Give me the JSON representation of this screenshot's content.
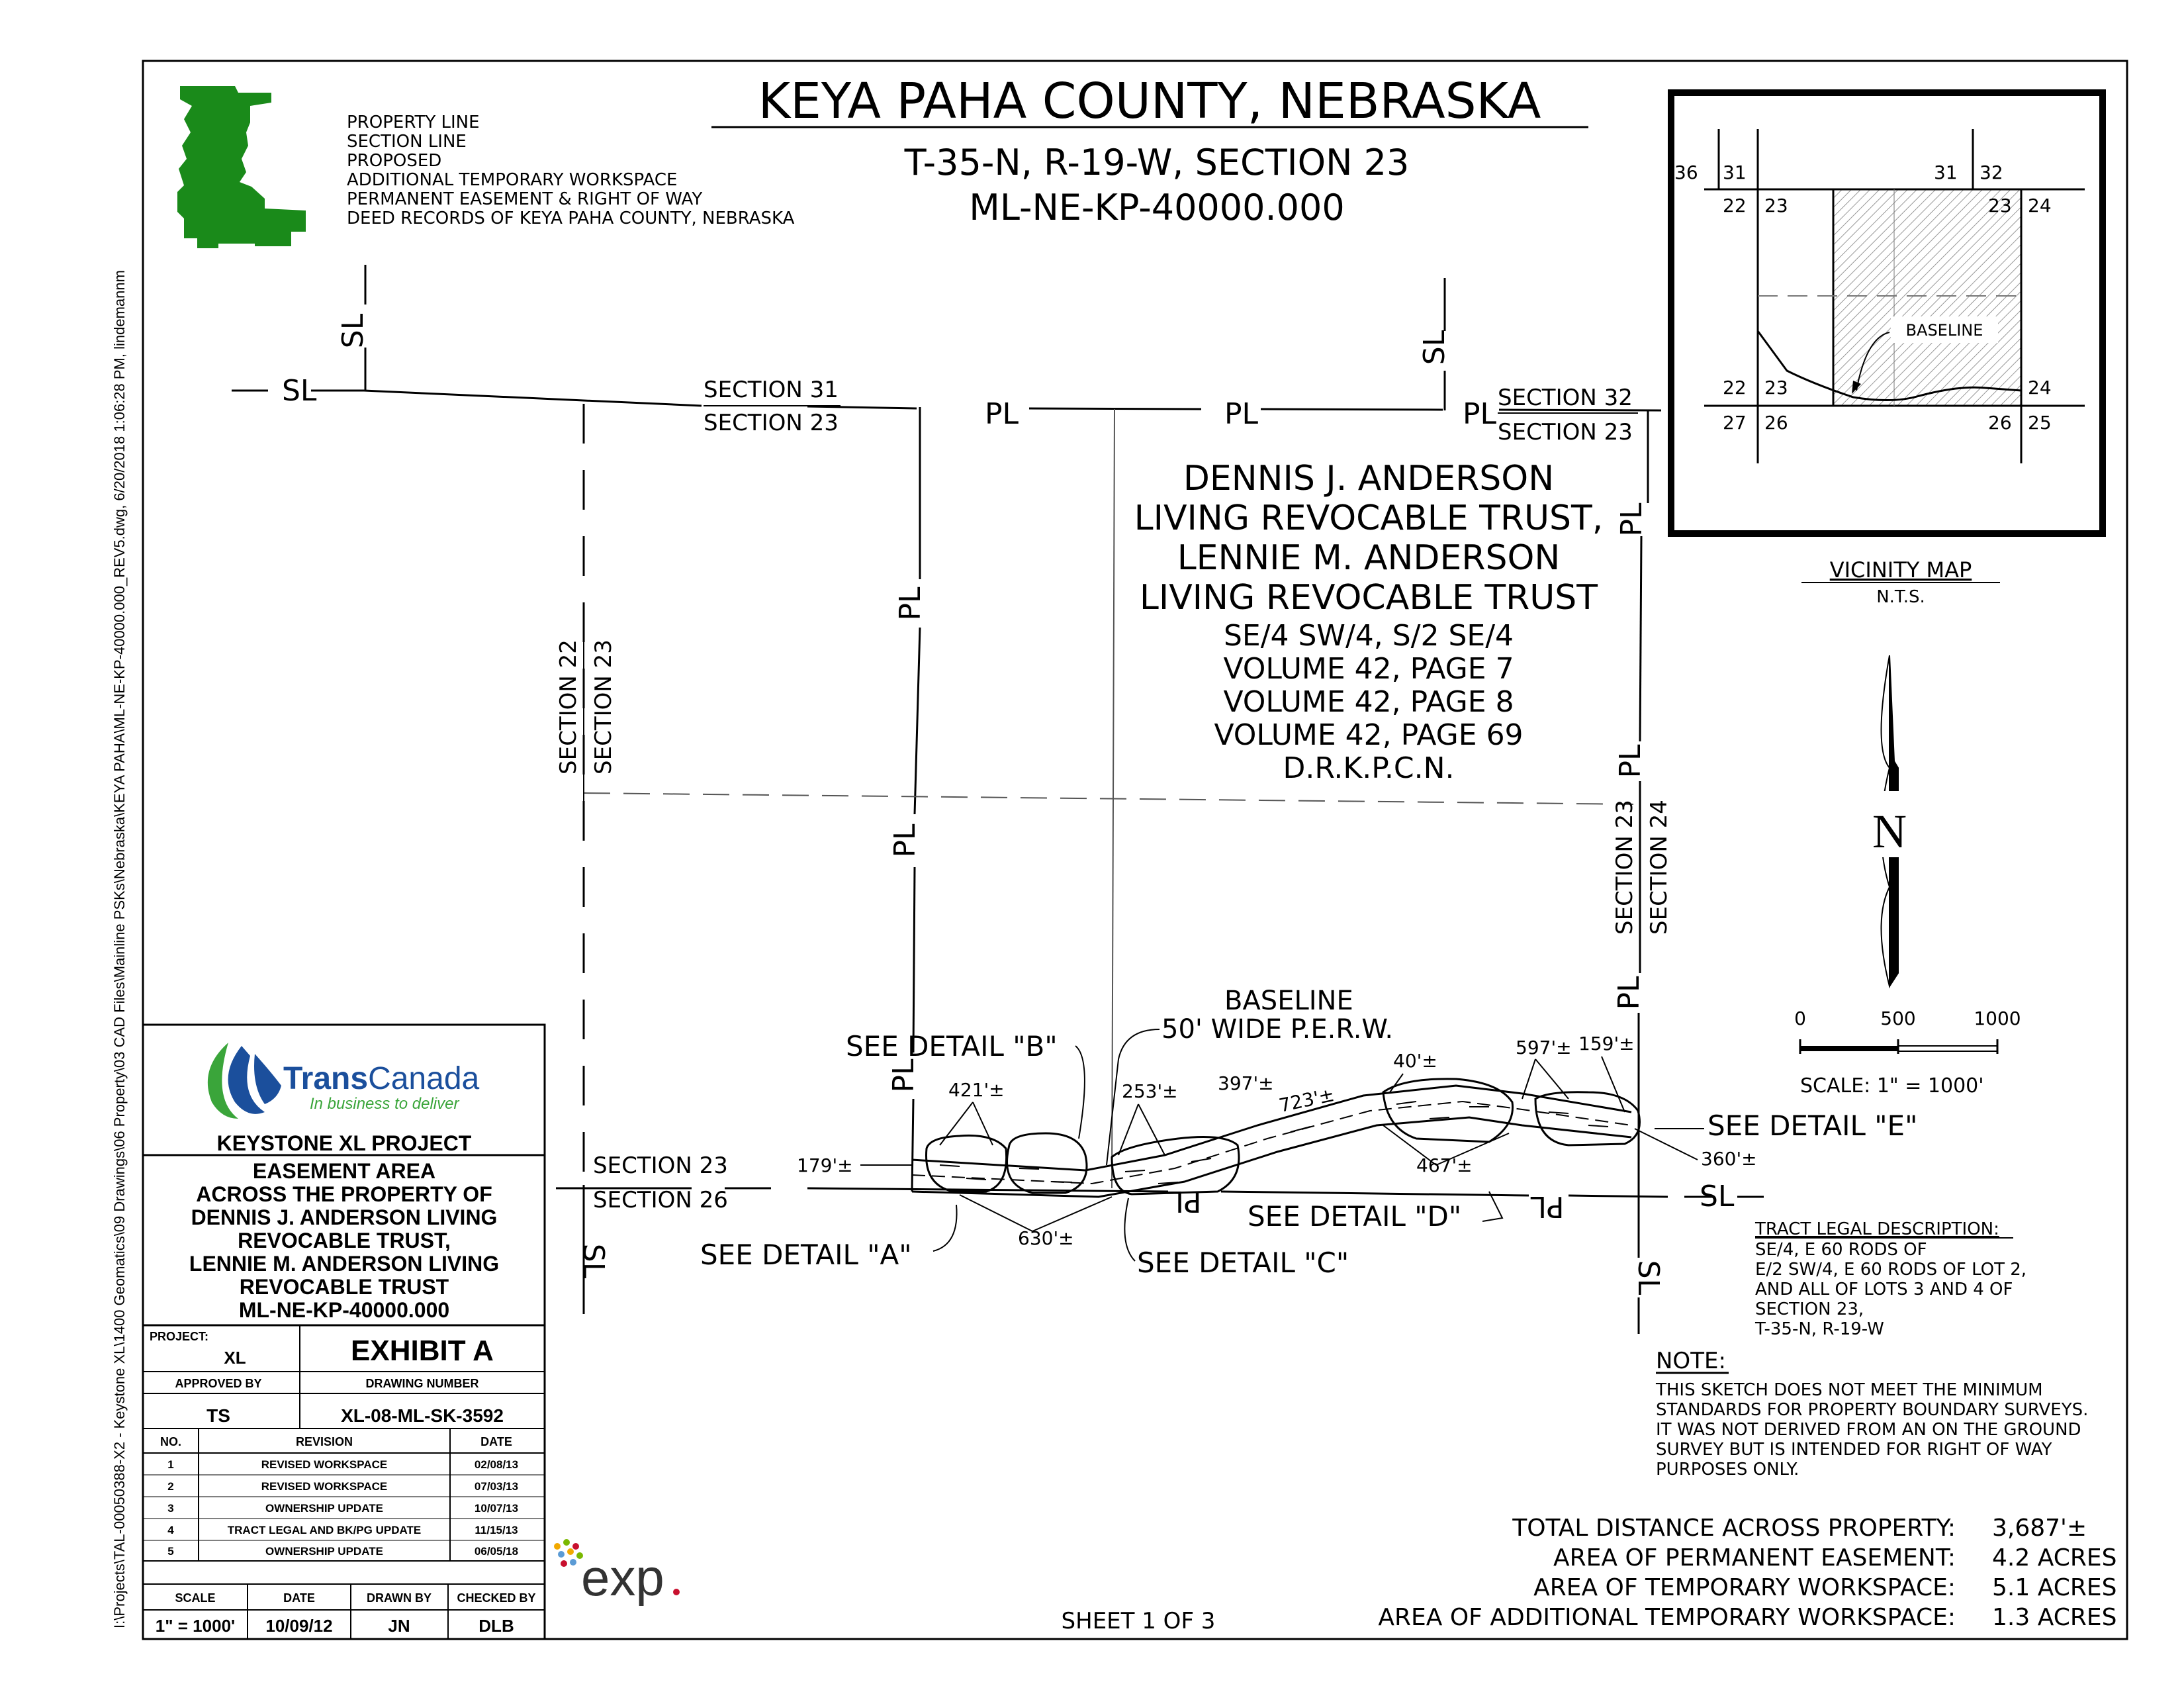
{
  "sheet": {
    "title": "KEYA PAHA COUNTY, NEBRASKA",
    "subtitle1": "T-35-N, R-19-W, SECTION 23",
    "subtitle2": "ML-NE-KP-40000.000",
    "file_path": "I:\\Projects\\TAL-00050388-X2 - Keystone XL\\1400 Geomatics\\09 Drawings\\06 Property\\03 CAD Files\\Mainline PSKs\\Nebraska\\KEYA PAHA\\ML-NE-KP-40000.000_REV5.dwg, 6/20/2018 1:06:28 PM, lindemannm",
    "sheet_number": "SHEET 1 OF 3"
  },
  "legend": {
    "items": [
      "PROPERTY LINE",
      "SECTION LINE",
      "PROPOSED",
      "ADDITIONAL TEMPORARY WORKSPACE",
      "PERMANENT EASEMENT & RIGHT OF WAY",
      "DEED RECORDS OF KEYA PAHA COUNTY, NEBRASKA"
    ],
    "swatch_color": "#1a8a1a"
  },
  "owner": {
    "lines": [
      "DENNIS J. ANDERSON",
      "LIVING REVOCABLE TRUST,",
      "LENNIE M. ANDERSON",
      "LIVING REVOCABLE TRUST"
    ],
    "details": [
      "SE/4 SW/4, S/2 SE/4",
      "VOLUME 42, PAGE 7",
      "VOLUME 42, PAGE 8",
      "VOLUME 42, PAGE 69",
      "D.R.K.P.C.N."
    ]
  },
  "sections": {
    "s31": "SECTION 31",
    "s23_top": "SECTION 23",
    "s32": "SECTION 32",
    "s23_top_right": "SECTION 23",
    "s22": "SECTION 22",
    "s23_left": "SECTION 23",
    "s23_right": "SECTION 23",
    "s24": "SECTION 24",
    "s23_bottom": "SECTION 23",
    "s26": "SECTION 26"
  },
  "symbols": {
    "section_line": "SL",
    "property_line": "PL"
  },
  "callouts": {
    "baseline": "BASELINE",
    "perw": "50' WIDE P.E.R.W.",
    "detail_a": "SEE DETAIL \"A\"",
    "detail_b": "SEE DETAIL \"B\"",
    "detail_c": "SEE DETAIL \"C\"",
    "detail_d": "SEE DETAIL \"D\"",
    "detail_e": "SEE DETAIL \"E\""
  },
  "dimensions": {
    "d179": "179'±",
    "d421": "421'±",
    "d630": "630'±",
    "d253": "253'±",
    "d397": "397'±",
    "d723": "723'±",
    "d40": "40'±",
    "d467": "467'±",
    "d597": "597'±",
    "d159": "159'±",
    "d360": "360'±"
  },
  "vicinity": {
    "title": "VICINITY MAP",
    "nts": "N.T.S.",
    "baseline": "BASELINE",
    "numbers": {
      "n36": "36",
      "n31a": "31",
      "n31b": "31",
      "n32": "32",
      "n22a": "22",
      "n23a": "23",
      "n23b": "23",
      "n24a": "24",
      "n22b": "22",
      "n23c": "23",
      "n24b": "24",
      "n27": "27",
      "n26a": "26",
      "n26b": "26",
      "n25": "25"
    }
  },
  "north_arrow": {
    "label": "N"
  },
  "scale_bar": {
    "labels": [
      "0",
      "500",
      "1000"
    ],
    "scale_text": "SCALE:   1\"  =  1000'"
  },
  "tract": {
    "heading": "TRACT LEGAL DESCRIPTION:",
    "lines": [
      "SE/4, E 60 RODS OF",
      "E/2 SW/4, E 60 RODS OF LOT 2,",
      "AND ALL OF LOTS 3 AND 4 OF",
      "SECTION 23,",
      "T-35-N, R-19-W"
    ]
  },
  "note": {
    "heading": "NOTE:",
    "lines": [
      "THIS SKETCH DOES NOT MEET THE MINIMUM",
      "STANDARDS FOR PROPERTY BOUNDARY SURVEYS.",
      "IT WAS NOT DERIVED FROM AN ON THE GROUND",
      "SURVEY BUT IS INTENDED FOR RIGHT OF WAY",
      "PURPOSES ONLY."
    ]
  },
  "totals": [
    {
      "label": "TOTAL DISTANCE ACROSS PROPERTY:",
      "value": "3,687'±"
    },
    {
      "label": "AREA OF PERMANENT EASEMENT:",
      "value": "4.2 ACRES"
    },
    {
      "label": "AREA OF TEMPORARY WORKSPACE:",
      "value": "5.1 ACRES"
    },
    {
      "label": "AREA OF ADDITIONAL TEMPORARY WORKSPACE:",
      "value": "1.3 ACRES"
    }
  ],
  "title_block": {
    "company": "TransCanada",
    "company_trans": "Trans",
    "company_canada": "Canada",
    "tagline": "In business to deliver",
    "project_heading": "KEYSTONE XL PROJECT",
    "description": [
      "EASEMENT AREA",
      "ACROSS THE PROPERTY OF",
      "DENNIS J. ANDERSON LIVING",
      "REVOCABLE TRUST,",
      "LENNIE M. ANDERSON LIVING",
      "REVOCABLE TRUST",
      "ML-NE-KP-40000.000"
    ],
    "project_label": "PROJECT:",
    "project_value": "XL",
    "exhibit": "EXHIBIT A",
    "approved_label": "APPROVED BY",
    "approved_value": "TS",
    "drawing_label": "DRAWING NUMBER",
    "drawing_value": "XL-08-ML-SK-3592",
    "rev_headers": {
      "no": "NO.",
      "revision": "REVISION",
      "date": "DATE"
    },
    "revisions": [
      {
        "no": "1",
        "rev": "REVISED WORKSPACE",
        "date": "02/08/13"
      },
      {
        "no": "2",
        "rev": "REVISED WORKSPACE",
        "date": "07/03/13"
      },
      {
        "no": "3",
        "rev": "OWNERSHIP UPDATE",
        "date": "10/07/13"
      },
      {
        "no": "4",
        "rev": "TRACT LEGAL AND BK/PG UPDATE",
        "date": "11/15/13"
      },
      {
        "no": "5",
        "rev": "OWNERSHIP UPDATE",
        "date": "06/05/18"
      }
    ],
    "footer_headers": {
      "scale": "SCALE",
      "date": "DATE",
      "drawn": "DRAWN BY",
      "checked": "CHECKED BY"
    },
    "footer_values": {
      "scale": "1\" = 1000'",
      "date": "10/09/12",
      "drawn": "JN",
      "checked": "DLB"
    },
    "colors": {
      "brand_green": "#3aa53a",
      "brand_blue": "#1b4f9c"
    }
  },
  "exp_logo": {
    "text": "exp",
    "dot_color": "#c8102e"
  }
}
